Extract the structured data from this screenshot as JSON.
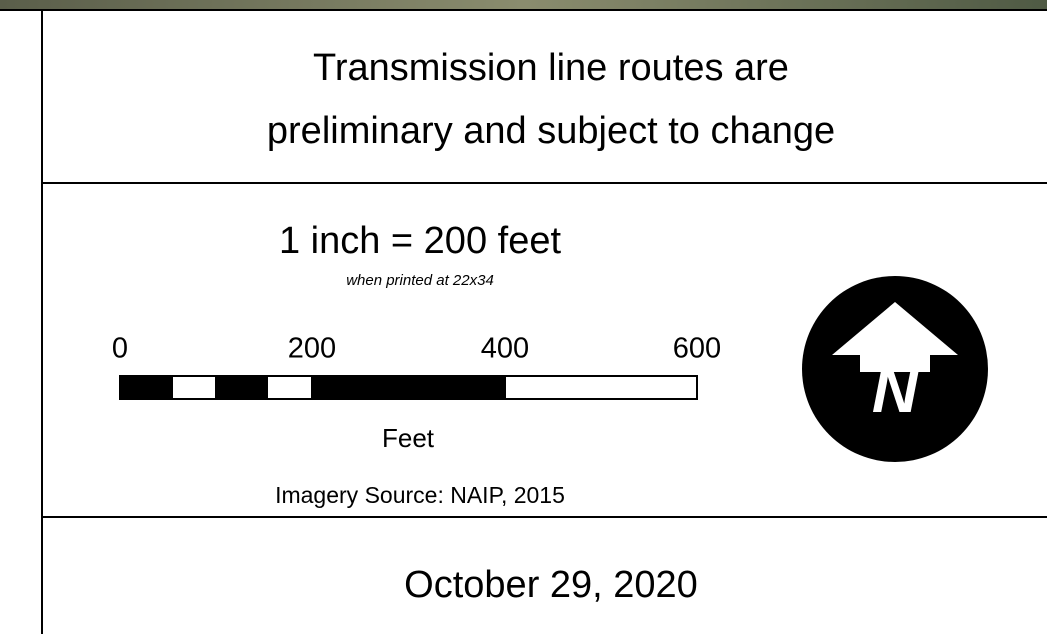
{
  "title": {
    "lines": [
      "Transmission line routes are",
      "preliminary and subject to change"
    ]
  },
  "scale": {
    "text": "1 inch = 200 feet",
    "note": "when printed at 22x34",
    "ticks": [
      0,
      200,
      400,
      600
    ],
    "unit": "Feet"
  },
  "north_arrow": {
    "label": "N"
  },
  "source": "Imagery Source: NAIP, 2015",
  "date": "October 29, 2020"
}
